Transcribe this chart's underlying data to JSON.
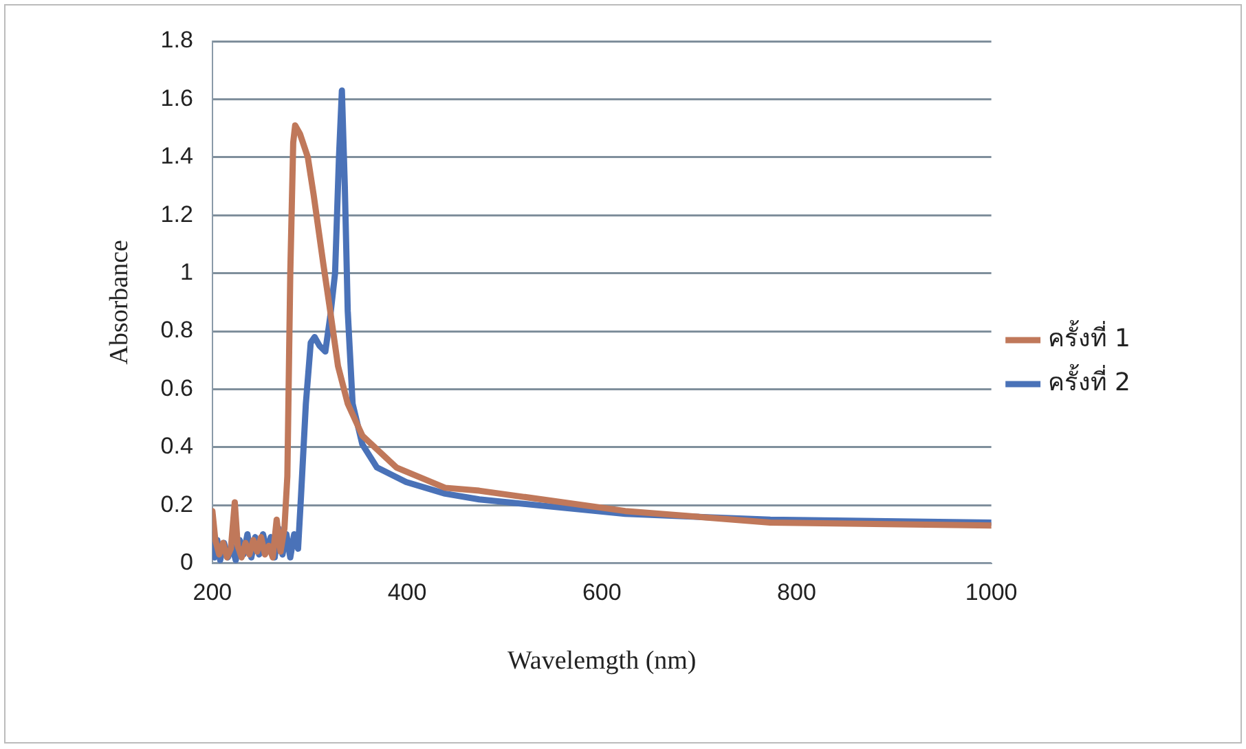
{
  "chart_data": {
    "type": "line",
    "xlabel": "Wavelemgth (nm)",
    "ylabel": "Absorbance",
    "xlim": [
      200,
      1000
    ],
    "xticks": [
      200,
      400,
      600,
      800,
      1000
    ],
    "ylim": [
      0,
      1.8
    ],
    "yticks": [
      0,
      0.2,
      0.4,
      0.6,
      0.8,
      1,
      1.2,
      1.4,
      1.6,
      1.8
    ],
    "grid": "y",
    "legend": "right",
    "marker": "none",
    "line_style": "solid",
    "series": [
      {
        "name": "ครั้งที่ 1",
        "color": "#c0785a",
        "x": [
          200,
          203,
          207,
          211,
          215,
          219,
          223,
          226,
          230,
          234,
          238,
          242,
          246,
          250,
          254,
          258,
          262,
          266,
          270,
          274,
          277,
          280,
          283,
          285,
          290,
          298,
          304,
          314,
          321,
          329,
          339,
          354,
          389,
          439,
          474,
          624,
          773,
          1000
        ],
        "values": [
          0.18,
          0.08,
          0.03,
          0.07,
          0.02,
          0.05,
          0.21,
          0.06,
          0.02,
          0.07,
          0.03,
          0.08,
          0.04,
          0.09,
          0.03,
          0.06,
          0.02,
          0.15,
          0.04,
          0.12,
          0.3,
          1.0,
          1.45,
          1.51,
          1.48,
          1.4,
          1.27,
          1.03,
          0.87,
          0.68,
          0.55,
          0.44,
          0.33,
          0.26,
          0.25,
          0.18,
          0.14,
          0.13
        ]
      },
      {
        "name": "ครั้งที่ 2",
        "color": "#4a72b8",
        "x": [
          200,
          202,
          205,
          208,
          212,
          216,
          220,
          224,
          228,
          232,
          236,
          240,
          244,
          248,
          252,
          256,
          260,
          264,
          268,
          272,
          276,
          280,
          284,
          288,
          291,
          296,
          301,
          305,
          310,
          316,
          321,
          326,
          330,
          333,
          336,
          339,
          344,
          354,
          369,
          399,
          439,
          474,
          624,
          773,
          1000
        ],
        "values": [
          0.1,
          0.02,
          0.08,
          0.01,
          0.07,
          0.02,
          0.06,
          0.01,
          0.08,
          0.03,
          0.1,
          0.02,
          0.09,
          0.03,
          0.1,
          0.04,
          0.09,
          0.02,
          0.12,
          0.03,
          0.1,
          0.02,
          0.1,
          0.05,
          0.23,
          0.55,
          0.76,
          0.78,
          0.75,
          0.73,
          0.85,
          1.0,
          1.4,
          1.63,
          1.3,
          0.87,
          0.55,
          0.41,
          0.33,
          0.28,
          0.24,
          0.22,
          0.17,
          0.15,
          0.14
        ]
      }
    ]
  }
}
